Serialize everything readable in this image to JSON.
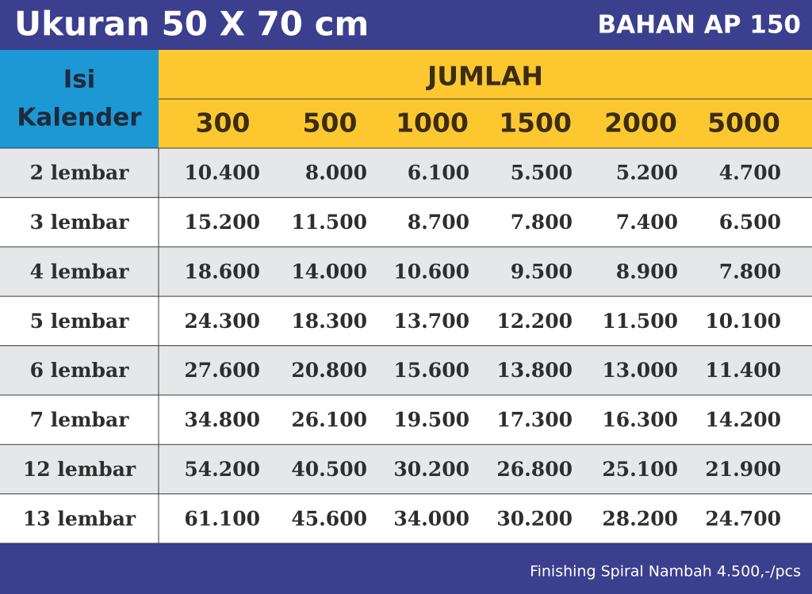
{
  "header": {
    "title": "Ukuran 50 X 70 cm",
    "material": "BAHAN AP 150"
  },
  "table": {
    "corner": [
      "Isi",
      "Kalender"
    ],
    "group_header": "JUMLAH",
    "columns": [
      300,
      500,
      1000,
      1500,
      2000,
      5000
    ],
    "rows": [
      {
        "label": "2 lembar",
        "values": [
          "10.400",
          "8.000",
          "6.100",
          "5.500",
          "5.200",
          "4.700"
        ]
      },
      {
        "label": "3 lembar",
        "values": [
          "15.200",
          "11.500",
          "8.700",
          "7.800",
          "7.400",
          "6.500"
        ]
      },
      {
        "label": "4 lembar",
        "values": [
          "18.600",
          "14.000",
          "10.600",
          "9.500",
          "8.900",
          "7.800"
        ]
      },
      {
        "label": "5 lembar",
        "values": [
          "24.300",
          "18.300",
          "13.700",
          "12.200",
          "11.500",
          "10.100"
        ]
      },
      {
        "label": "6 lembar",
        "values": [
          "27.600",
          "20.800",
          "15.600",
          "13.800",
          "13.000",
          "11.400"
        ]
      },
      {
        "label": "7 lembar",
        "values": [
          "34.800",
          "26.100",
          "19.500",
          "17.300",
          "16.300",
          "14.200"
        ]
      },
      {
        "label": "12 lembar",
        "values": [
          "54.200",
          "40.500",
          "30.200",
          "26.800",
          "25.100",
          "21.900"
        ]
      },
      {
        "label": "13 lembar",
        "values": [
          "61.100",
          "45.600",
          "34.000",
          "30.200",
          "28.200",
          "24.700"
        ]
      }
    ]
  },
  "footer": {
    "note": "Finishing Spiral Nambah 4.500,-/pcs"
  }
}
